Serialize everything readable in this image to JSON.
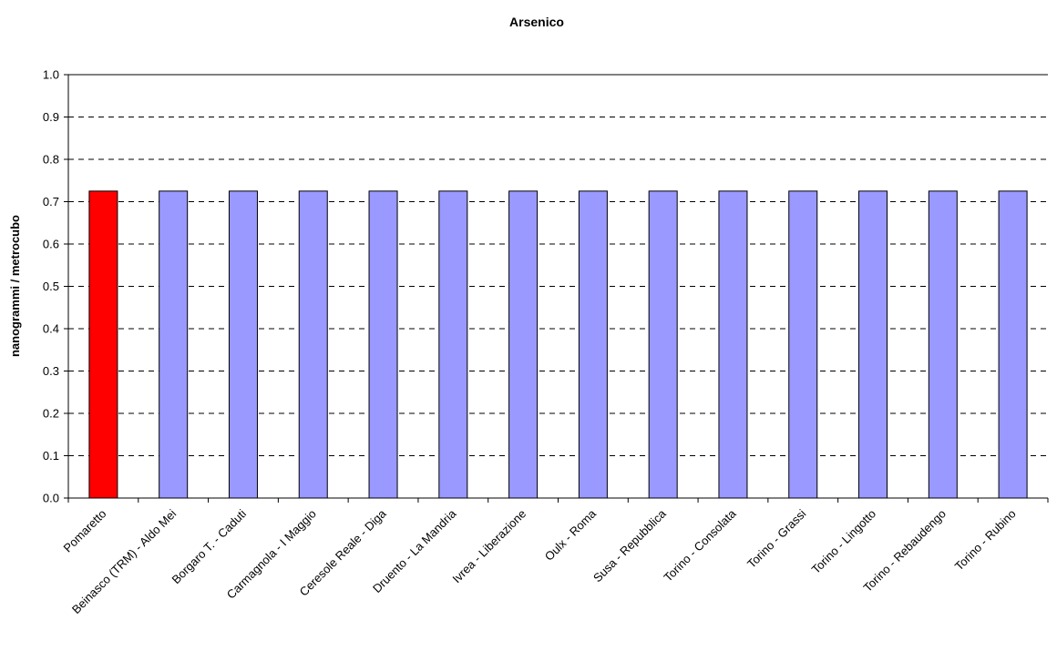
{
  "chart_data": {
    "type": "bar",
    "title": "Arsenico",
    "xlabel": "",
    "ylabel": "nanogrammi / metrocubo",
    "ylim": [
      0,
      1.0
    ],
    "yticks": [
      "0.0",
      "0.1",
      "0.2",
      "0.3",
      "0.4",
      "0.5",
      "0.6",
      "0.7",
      "0.8",
      "0.9",
      "1.0"
    ],
    "grid": true,
    "legend": "none",
    "categories": [
      "Pomaretto",
      "Beinasco (TRM) - Aldo Mei",
      "Borgaro T. - Caduti",
      "Carmagnola - I Maggio",
      "Ceresole Reale - Diga",
      "Druento - La Mandria",
      "Ivrea - Liberazione",
      "Oulx - Roma",
      "Susa - Repubblica",
      "Torino - Consolata",
      "Torino - Grassi",
      "Torino - Lingotto",
      "Torino - Rebaudengo",
      "Torino - Rubino"
    ],
    "values": [
      0.725,
      0.725,
      0.725,
      0.725,
      0.725,
      0.725,
      0.725,
      0.725,
      0.725,
      0.725,
      0.725,
      0.725,
      0.725,
      0.725
    ],
    "colors": {
      "highlight": "#ff0000",
      "default": "#9999ff"
    },
    "highlight_index": 0
  }
}
